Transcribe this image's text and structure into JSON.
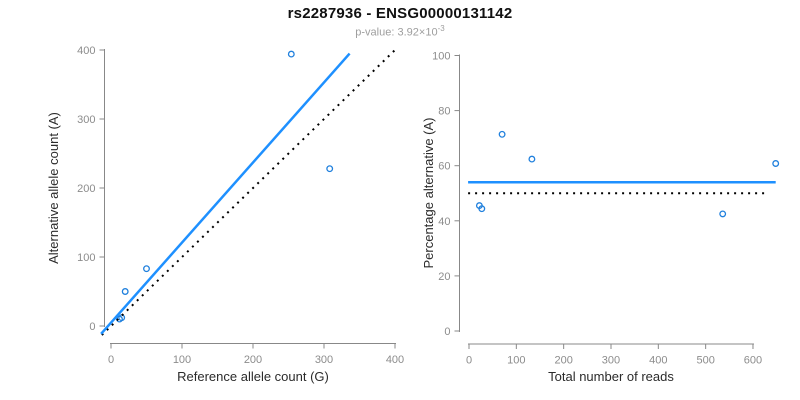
{
  "header": {
    "title": "rs2287936 - ENSG00000131142",
    "subtitle": {
      "prefix": "p-value: ",
      "mantissa": "3.92",
      "times": "×",
      "base": "10",
      "exponent": "-3"
    }
  },
  "colors": {
    "point_blue": "#2080DD",
    "line_blue": "#1E90FF",
    "identity_black": "#000000",
    "axis_gray": "#888888",
    "tick_label_gray": "#8C8C8C",
    "axis_title_color": "#2B2B2B",
    "title_color": "#111111",
    "subtitle_gray": "#9E9E9E"
  },
  "chart_data": [
    {
      "type": "scatter",
      "panel": "left",
      "xlabel": "Reference allele count (G)",
      "ylabel": "Alternative allele count (A)",
      "xlim": [
        0,
        400
      ],
      "ylim": [
        0,
        400
      ],
      "xticks": [
        0,
        100,
        200,
        300,
        400
      ],
      "yticks": [
        0,
        100,
        200,
        300,
        400
      ],
      "grid": false,
      "legend": null,
      "points": [
        [
          254,
          394
        ],
        [
          308,
          228
        ],
        [
          50,
          83
        ],
        [
          20,
          50
        ],
        [
          12,
          10
        ],
        [
          15,
          12
        ]
      ],
      "lines": [
        {
          "name": "identity-line",
          "type": "linear",
          "slope": 1,
          "intercept": 0,
          "style": "dotted",
          "color": "#000000",
          "x_range": [
            -13,
            400
          ]
        },
        {
          "name": "regression-line",
          "type": "linear",
          "slope": 1.16,
          "intercept": 5,
          "style": "solid",
          "color": "#1E90FF",
          "x_range": [
            -14,
            336
          ]
        }
      ]
    },
    {
      "type": "scatter",
      "panel": "right",
      "xlabel": "Total number of reads",
      "ylabel": "Percentage alternative (A)",
      "xlim": [
        0,
        600
      ],
      "ylim": [
        0,
        100
      ],
      "xticks": [
        0,
        100,
        200,
        300,
        400,
        500,
        600
      ],
      "yticks": [
        0,
        20,
        40,
        60,
        80,
        100
      ],
      "grid": false,
      "legend": null,
      "points": [
        [
          648,
          60.8
        ],
        [
          536,
          42.5
        ],
        [
          133,
          62.4
        ],
        [
          70,
          71.4
        ],
        [
          22,
          45.5
        ],
        [
          27,
          44.4
        ]
      ],
      "lines": [
        {
          "name": "null-percentage-line",
          "type": "horizontal",
          "y": 50,
          "style": "dotted",
          "color": "#000000",
          "x_range": [
            -2,
            632
          ]
        },
        {
          "name": "fitted-percentage-line",
          "type": "horizontal",
          "y": 54,
          "style": "solid",
          "color": "#1E90FF",
          "x_range": [
            -2,
            648
          ]
        }
      ]
    }
  ]
}
